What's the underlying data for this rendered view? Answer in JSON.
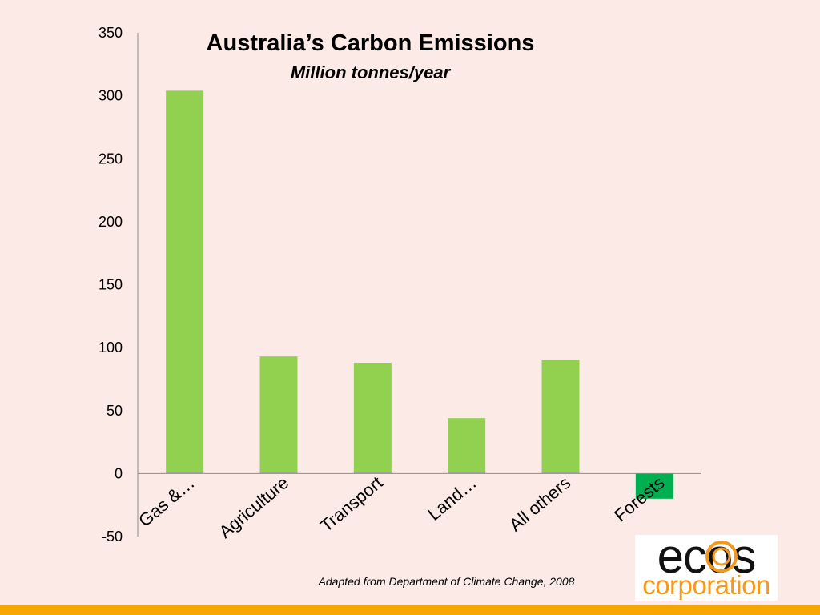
{
  "chart_data": {
    "type": "bar",
    "title": "Australia’s Carbon Emissions",
    "subtitle": "Million tonnes/year",
    "categories": [
      "Gas &…",
      "Agriculture",
      "Transport",
      "Land…",
      "All others",
      "Forests"
    ],
    "values": [
      304,
      93,
      88,
      44,
      90,
      -20
    ],
    "ylim": [
      -50,
      350
    ],
    "yticks": [
      350,
      300,
      250,
      200,
      150,
      100,
      50,
      0,
      -50
    ],
    "colors": [
      "#92d050",
      "#92d050",
      "#92d050",
      "#92d050",
      "#92d050",
      "#00b050"
    ],
    "grid": false,
    "legend": "none"
  },
  "source_note": "Adapted from Department of Climate Change, 2008",
  "logo": {
    "word": "ecos",
    "sub": "corporation",
    "colors": {
      "word": "#111111",
      "sub": "#f39a1e",
      "mark": "#f39a1e"
    }
  },
  "theme": {
    "background": "#fbeae6",
    "footer_bar": "#f7a600"
  }
}
